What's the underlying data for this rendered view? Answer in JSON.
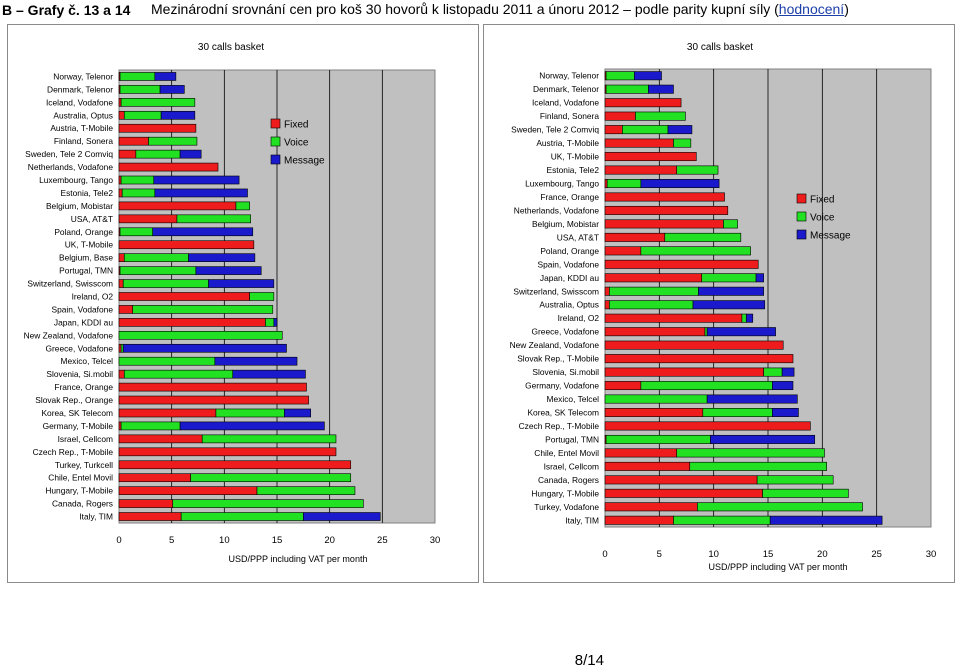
{
  "header": {
    "label": "B – Grafy č. 13 a 14",
    "title_before": "Mezinárodní srovnání cen pro koš 30 hovorů k listopadu 2011 a únoru 2012 – podle parity kupní síly (",
    "link": "hodnocení",
    "title_after": ")"
  },
  "page_number": "8/14",
  "colors": {
    "Fixed": "#ee1c1c",
    "Voice": "#22e022",
    "Message": "#1a1acc",
    "plot_bg": "#c0c0c0"
  },
  "chart_data": [
    {
      "type": "bar",
      "orientation": "horizontal",
      "stacked": true,
      "title": "30 calls basket",
      "xlabel": "USD/PPP including VAT per month",
      "xlim": [
        0,
        30
      ],
      "xticks": [
        0,
        5,
        10,
        15,
        20,
        25,
        30
      ],
      "legend_position": "right",
      "categories": [
        "Norway, Telenor",
        "Denmark, Telenor",
        "Iceland, Vodafone",
        "Australia, Optus",
        "Austria, T-Mobile",
        "Finland, Sonera",
        "Sweden, Tele 2 Comviq",
        "Netherlands, Vodafone",
        "Luxembourg, Tango",
        "Estonia, Tele2",
        "Belgium, Mobistar",
        "USA, AT&T",
        "Poland, Orange",
        "UK, T-Mobile",
        "Belgium, Base",
        "Portugal, TMN",
        "Switzerland, Swisscom",
        "Ireland, O2",
        "Spain, Vodafone",
        "Japan, KDDI au",
        "New Zealand, Vodafone",
        "Greece, Vodafone",
        "Mexico, Telcel",
        "Slovenia, Si.mobil",
        "France, Orange",
        "Slovak Rep., Orange",
        "Korea, SK Telecom",
        "Germany, T-Mobile",
        "Israel, Cellcom",
        "Czech Rep., T-Mobile",
        "Turkey, Turkcell",
        "Chile, Entel Movil",
        "Hungary, T-Mobile",
        "Canada, Rogers",
        "Italy, TIM"
      ],
      "series": [
        {
          "name": "Fixed",
          "values": [
            0.1,
            0.1,
            0.2,
            0.5,
            7.3,
            2.8,
            1.6,
            9.4,
            0.2,
            0.3,
            11.1,
            5.5,
            0.1,
            12.8,
            0.5,
            0.1,
            0.4,
            12.4,
            1.3,
            13.9,
            0,
            0.2,
            0,
            0.5,
            17.8,
            18.0,
            9.2,
            0.2,
            7.9,
            20.6,
            22.0,
            6.8,
            13.1,
            5.1,
            5.9
          ]
        },
        {
          "name": "Voice",
          "values": [
            3.3,
            3.8,
            7.0,
            3.5,
            0,
            4.6,
            4.2,
            0,
            3.1,
            3.1,
            1.3,
            7.0,
            3.1,
            0,
            6.1,
            7.2,
            8.1,
            2.3,
            13.3,
            0.8,
            15.5,
            0.2,
            9.1,
            10.3,
            0,
            0,
            6.5,
            5.6,
            12.7,
            0,
            0,
            15.2,
            9.3,
            18.1,
            11.6
          ]
        },
        {
          "name": "Message",
          "values": [
            2.0,
            2.3,
            0,
            3.2,
            0,
            0,
            2.0,
            0,
            8.1,
            8.8,
            0,
            0,
            9.5,
            0,
            6.3,
            6.2,
            6.2,
            0,
            0,
            0.3,
            0,
            15.5,
            7.8,
            6.9,
            0,
            0,
            2.5,
            13.7,
            0,
            0,
            0,
            0,
            0,
            0,
            7.3
          ]
        }
      ]
    },
    {
      "type": "bar",
      "orientation": "horizontal",
      "stacked": true,
      "title": "30 calls basket",
      "xlabel": "USD/PPP including VAT per month",
      "xlim": [
        0,
        30
      ],
      "xticks": [
        0,
        5,
        10,
        15,
        20,
        25,
        30
      ],
      "legend_position": "right",
      "categories": [
        "Norway, Telenor",
        "Denmark, Telenor",
        "Iceland, Vodafone",
        "Finland, Sonera",
        "Sweden, Tele 2 Comviq",
        "Austria, T-Mobile",
        "UK, T-Mobile",
        "Estonia, Tele2",
        "Luxembourg, Tango",
        "France, Orange",
        "Netherlands, Vodafone",
        "Belgium, Mobistar",
        "USA, AT&T",
        "Poland, Orange",
        "Spain, Vodafone",
        "Japan, KDDI au",
        "Switzerland, Swisscom",
        "Australia, Optus",
        "Ireland, O2",
        "Greece, Vodafone",
        "New Zealand, Vodafone",
        "Slovak Rep., T-Mobile",
        "Slovenia, Si.mobil",
        "Germany, Vodafone",
        "Mexico, Telcel",
        "Korea, SK Telecom",
        "Czech Rep., T-Mobile",
        "Portugal, TMN",
        "Chile, Entel Movil",
        "Israel, Cellcom",
        "Canada, Rogers",
        "Hungary, T-Mobile",
        "Turkey, Vodafone",
        "Italy, TIM"
      ],
      "series": [
        {
          "name": "Fixed",
          "values": [
            0.1,
            0.1,
            7.0,
            2.8,
            1.6,
            6.3,
            8.4,
            6.6,
            0.2,
            11.0,
            11.3,
            10.9,
            5.5,
            3.3,
            14.1,
            8.9,
            0.4,
            0.4,
            12.6,
            9.2,
            16.4,
            17.3,
            14.6,
            3.3,
            0,
            9.0,
            18.9,
            0.1,
            6.6,
            7.8,
            14.0,
            14.5,
            8.5,
            6.3
          ]
        },
        {
          "name": "Voice",
          "values": [
            2.6,
            3.9,
            0,
            4.6,
            4.2,
            1.6,
            0,
            3.8,
            3.1,
            0,
            0,
            1.3,
            7.0,
            10.1,
            0,
            5.0,
            8.2,
            7.7,
            0.4,
            0.2,
            0,
            0,
            1.7,
            12.1,
            9.4,
            6.4,
            0,
            9.6,
            13.6,
            12.6,
            7.0,
            7.9,
            15.2,
            8.9
          ]
        },
        {
          "name": "Message",
          "values": [
            2.5,
            2.3,
            0,
            0,
            2.2,
            0,
            0,
            0,
            7.2,
            0,
            0,
            0,
            0,
            0,
            0,
            0.7,
            6.0,
            6.6,
            0.6,
            6.3,
            0,
            0,
            1.1,
            1.9,
            8.3,
            2.4,
            0,
            9.6,
            0,
            0,
            0,
            0,
            0,
            10.3
          ]
        }
      ]
    }
  ]
}
